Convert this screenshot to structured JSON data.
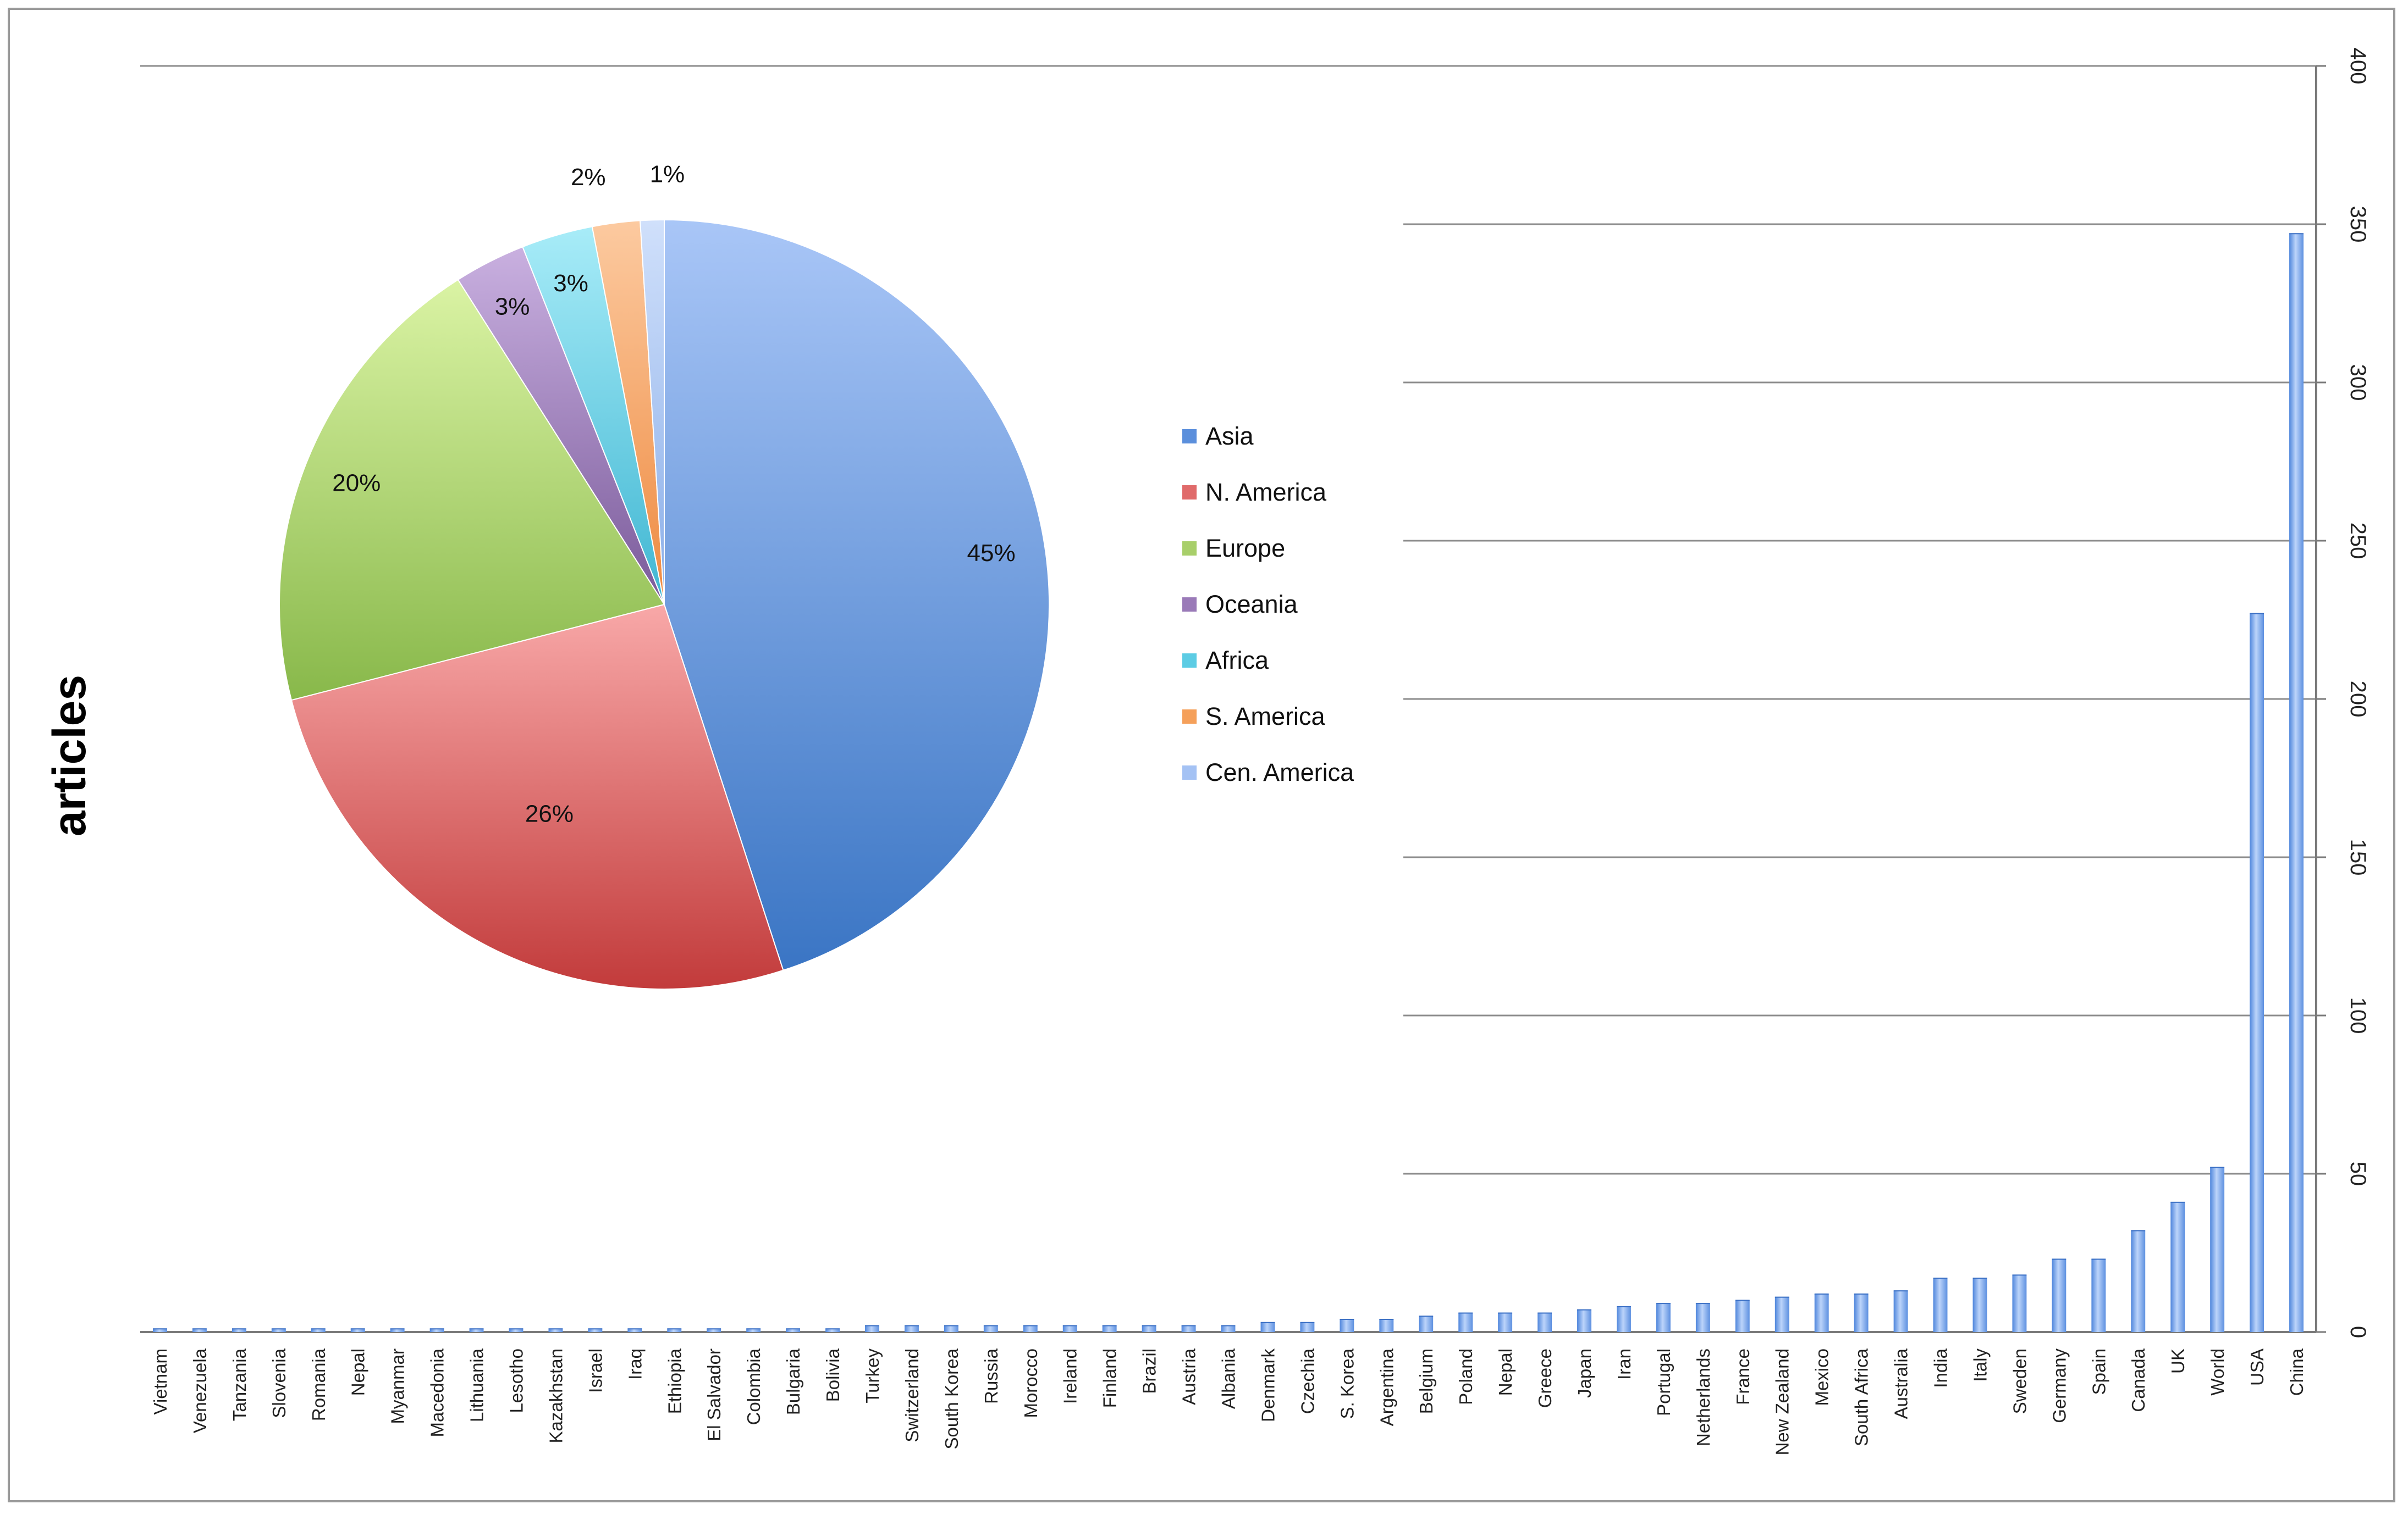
{
  "chart_data": [
    {
      "type": "bar",
      "ylabel": "articles",
      "ylim": [
        0,
        400
      ],
      "yticks": [
        "0",
        "50",
        "100",
        "150",
        "200",
        "250",
        "300",
        "350",
        "400"
      ],
      "y_axis_position": "right",
      "grid": true,
      "color": "#6f9fe6",
      "categories": [
        "Vietnam",
        "Venezuela",
        "Tanzania",
        "Slovenia",
        "Romania",
        "Nepal",
        "Myanmar",
        "Macedonia",
        "Lithuania",
        "Lesotho",
        "Kazakhstan",
        "Israel",
        "Iraq",
        "Ethiopia",
        "El Salvador",
        "Colombia",
        "Bulgaria",
        "Bolivia",
        "Turkey",
        "Switzerland",
        "South Korea",
        "Russia",
        "Morocco",
        "Ireland",
        "Finland",
        "Brazil",
        "Austria",
        "Albania",
        "Denmark",
        "Czechia",
        "S. Korea",
        "Argentina",
        "Belgium",
        "Poland",
        "Nepal",
        "Greece",
        "Japan",
        "Iran",
        "Portugal",
        "Netherlands",
        "France",
        "New Zealand",
        "Mexico",
        "South Africa",
        "Australia",
        "India",
        "Italy",
        "Sweden",
        "Germany",
        "Spain",
        "Canada",
        "UK",
        "World",
        "USA",
        "China"
      ],
      "values": [
        1,
        1,
        1,
        1,
        1,
        1,
        1,
        1,
        1,
        1,
        1,
        1,
        1,
        1,
        1,
        1,
        1,
        1,
        2,
        2,
        2,
        2,
        2,
        2,
        2,
        2,
        2,
        2,
        3,
        3,
        4,
        4,
        5,
        6,
        6,
        6,
        7,
        8,
        9,
        9,
        10,
        11,
        12,
        12,
        13,
        17,
        17,
        18,
        23,
        23,
        32,
        41,
        52,
        227,
        347
      ]
    },
    {
      "type": "pie",
      "legend_position": "right",
      "slices": [
        {
          "name": "Asia",
          "label": "45%",
          "value": 45,
          "color": "#5b8fdc",
          "light": "#a9c6f7",
          "dark": "#3a75c4"
        },
        {
          "name": "N. America",
          "label": "26%",
          "value": 26,
          "color": "#e06a6a",
          "light": "#f8a8a8",
          "dark": "#c23b3b"
        },
        {
          "name": "Europe",
          "label": "20%",
          "value": 20,
          "color": "#a8cf6a",
          "light": "#daf3a4",
          "dark": "#88b84a"
        },
        {
          "name": "Oceania",
          "label": "3%",
          "value": 3,
          "color": "#9a7ab8",
          "light": "#c9b0e0",
          "dark": "#7a5a9a"
        },
        {
          "name": "Africa",
          "label": "3%",
          "value": 3,
          "color": "#5ccce4",
          "light": "#a8ecf8",
          "dark": "#3fb6d2"
        },
        {
          "name": "S. America",
          "label": "2%",
          "value": 2,
          "color": "#f5a05a",
          "light": "#fccaa0",
          "dark": "#ee8a40"
        },
        {
          "name": "Cen. America",
          "label": "1%",
          "value": 1,
          "color": "#a4c2f4",
          "light": "#d0e0fb",
          "dark": "#8aaee8"
        }
      ]
    }
  ]
}
